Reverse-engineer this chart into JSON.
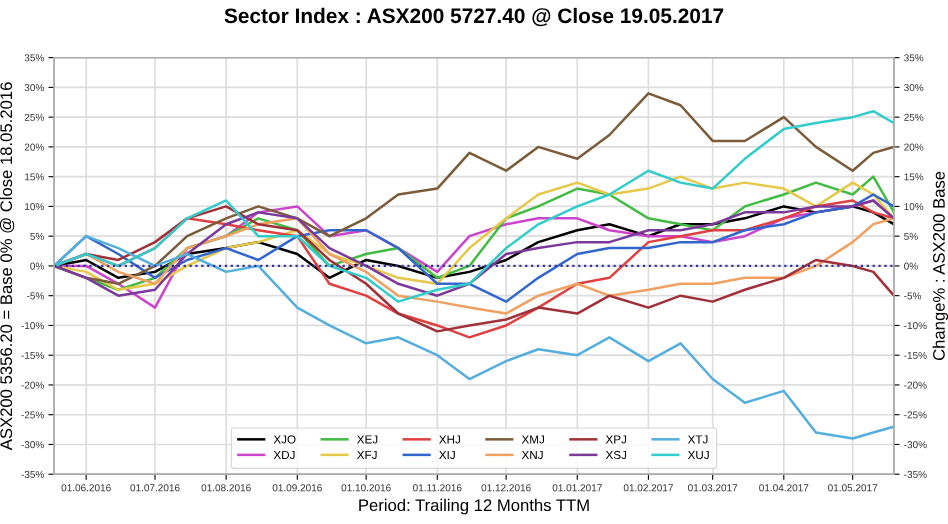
{
  "chart_data": {
    "type": "line",
    "title": "Sector Index : ASX200 5727.40 @ Close 19.05.2017",
    "xlabel": "Period: Trailing 12 Months TTM",
    "ylabel": "ASX200 5356.20 = Base 0% @ Close 18.05.2016",
    "y2label": "Change% : ASX200 Base",
    "x": [
      "2016-05-18",
      "2016-06-01",
      "2016-06-15",
      "2016-07-01",
      "2016-07-15",
      "2016-08-01",
      "2016-08-15",
      "2016-09-01",
      "2016-09-15",
      "2016-10-01",
      "2016-10-15",
      "2016-11-01",
      "2016-11-15",
      "2016-12-01",
      "2016-12-15",
      "2017-01-01",
      "2017-01-15",
      "2017-02-01",
      "2017-02-15",
      "2017-03-01",
      "2017-03-15",
      "2017-04-01",
      "2017-04-15",
      "2017-05-01",
      "2017-05-10",
      "2017-05-19"
    ],
    "series": [
      {
        "name": "XJO",
        "color": "#000000",
        "values": [
          0,
          1,
          -2,
          -1,
          2,
          3,
          4,
          2,
          -2,
          1,
          0,
          -2,
          -1,
          1,
          4,
          6,
          7,
          5,
          7,
          7,
          8,
          10,
          9,
          10,
          9,
          7
        ]
      },
      {
        "name": "XDJ",
        "color": "#cc44cc",
        "values": [
          0,
          0,
          -3,
          -7,
          3,
          5,
          9,
          10,
          5,
          6,
          3,
          -1,
          5,
          7,
          8,
          8,
          6,
          5,
          5,
          4,
          5,
          8,
          9,
          10,
          11,
          8
        ]
      },
      {
        "name": "XEJ",
        "color": "#44bb44",
        "values": [
          0,
          -2,
          -4,
          -2,
          3,
          5,
          8,
          6,
          0,
          2,
          3,
          -2,
          0,
          8,
          10,
          13,
          12,
          8,
          7,
          6,
          10,
          12,
          14,
          12,
          15,
          9
        ]
      },
      {
        "name": "XFJ",
        "color": "#e6c84a",
        "values": [
          0,
          -1,
          -4,
          -3,
          0,
          3,
          4,
          6,
          2,
          0,
          -2,
          -3,
          3,
          8,
          12,
          14,
          12,
          13,
          15,
          13,
          14,
          13,
          10,
          14,
          12,
          8
        ]
      },
      {
        "name": "XHJ",
        "color": "#e04040",
        "values": [
          0,
          2,
          0,
          3,
          8,
          7,
          6,
          5,
          -3,
          -5,
          -8,
          -10,
          -12,
          -10,
          -7,
          -3,
          -2,
          4,
          5,
          6,
          6,
          8,
          10,
          11,
          9,
          8
        ]
      },
      {
        "name": "XIJ",
        "color": "#3366cc",
        "values": [
          0,
          5,
          2,
          -2,
          1,
          3,
          1,
          5,
          6,
          6,
          3,
          -3,
          -3,
          -6,
          -2,
          2,
          3,
          3,
          4,
          4,
          6,
          7,
          9,
          10,
          12,
          10
        ]
      },
      {
        "name": "XMJ",
        "color": "#7a5c3a",
        "values": [
          0,
          -2,
          -3,
          0,
          5,
          8,
          10,
          8,
          5,
          8,
          12,
          13,
          19,
          16,
          20,
          18,
          22,
          29,
          27,
          21,
          21,
          25,
          20,
          16,
          19,
          20
        ]
      },
      {
        "name": "XNJ",
        "color": "#f0a060",
        "values": [
          0,
          2,
          -1,
          -3,
          3,
          5,
          7,
          8,
          2,
          -1,
          -5,
          -6,
          -7,
          -8,
          -5,
          -3,
          -5,
          -4,
          -3,
          -3,
          -2,
          -2,
          0,
          4,
          7,
          8
        ]
      },
      {
        "name": "XPJ",
        "color": "#a0303a",
        "values": [
          0,
          2,
          1,
          4,
          8,
          10,
          7,
          6,
          1,
          -3,
          -8,
          -11,
          -10,
          -9,
          -7,
          -8,
          -5,
          -7,
          -5,
          -6,
          -4,
          -2,
          1,
          0,
          -1,
          -5
        ]
      },
      {
        "name": "XSJ",
        "color": "#7b3a9a",
        "values": [
          0,
          -2,
          -5,
          -4,
          2,
          7,
          9,
          8,
          3,
          0,
          -3,
          -5,
          -3,
          2,
          3,
          4,
          4,
          6,
          6,
          7,
          9,
          9,
          10,
          10,
          11,
          8
        ]
      },
      {
        "name": "XTJ",
        "color": "#55aedb",
        "values": [
          0,
          5,
          3,
          0,
          2,
          -1,
          0,
          -7,
          -10,
          -13,
          -12,
          -15,
          -19,
          -16,
          -14,
          -15,
          -12,
          -16,
          -13,
          -19,
          -23,
          -21,
          -28,
          -29,
          -28,
          -27
        ]
      },
      {
        "name": "XUJ",
        "color": "#33cccc",
        "values": [
          0,
          2,
          0,
          3,
          8,
          11,
          5,
          5,
          0,
          -2,
          -6,
          -4,
          -3,
          3,
          7,
          10,
          12,
          16,
          14,
          13,
          18,
          23,
          24,
          25,
          26,
          24
        ]
      }
    ],
    "xlim": [
      "2016-05-18",
      "2017-05-19"
    ],
    "xticks": [
      {
        "value": "2016-06-01",
        "label": "01.06.2016"
      },
      {
        "value": "2016-07-01",
        "label": "01.07.2016"
      },
      {
        "value": "2016-08-01",
        "label": "01.08.2016"
      },
      {
        "value": "2016-09-01",
        "label": "01.09.2016"
      },
      {
        "value": "2016-10-01",
        "label": "01.10.2016"
      },
      {
        "value": "2016-11-01",
        "label": "01.11.2016"
      },
      {
        "value": "2016-12-01",
        "label": "01.12.2016"
      },
      {
        "value": "2017-01-01",
        "label": "01.01.2017"
      },
      {
        "value": "2017-02-01",
        "label": "01.02.2017"
      },
      {
        "value": "2017-03-01",
        "label": "01.03.2017"
      },
      {
        "value": "2017-04-01",
        "label": "01.04.2017"
      },
      {
        "value": "2017-05-01",
        "label": "01.05.2017"
      }
    ],
    "ylim": [
      -35,
      35
    ],
    "yticks": [
      {
        "value": -35,
        "label": "-35%"
      },
      {
        "value": -30,
        "label": "-30%"
      },
      {
        "value": -25,
        "label": "-25%"
      },
      {
        "value": -20,
        "label": "-20%"
      },
      {
        "value": -15,
        "label": "-15%"
      },
      {
        "value": -10,
        "label": "-10%"
      },
      {
        "value": -5,
        "label": "-5%"
      },
      {
        "value": 0,
        "label": "0%"
      },
      {
        "value": 5,
        "label": "5%"
      },
      {
        "value": 10,
        "label": "10%"
      },
      {
        "value": 15,
        "label": "15%"
      },
      {
        "value": 20,
        "label": "20%"
      },
      {
        "value": 25,
        "label": "25%"
      },
      {
        "value": 30,
        "label": "30%"
      },
      {
        "value": 35,
        "label": "35%"
      }
    ],
    "y2lim": [
      -35,
      35
    ],
    "y2ticks": [
      {
        "value": -35,
        "label": "-35%"
      },
      {
        "value": -30,
        "label": "-30%"
      },
      {
        "value": -25,
        "label": "-25%"
      },
      {
        "value": -20,
        "label": "-20%"
      },
      {
        "value": -15,
        "label": "-15%"
      },
      {
        "value": -10,
        "label": "-10%"
      },
      {
        "value": -5,
        "label": "-5%"
      },
      {
        "value": 0,
        "label": "0%"
      },
      {
        "value": 5,
        "label": "5%"
      },
      {
        "value": 10,
        "label": "10%"
      },
      {
        "value": 15,
        "label": "15%"
      },
      {
        "value": 20,
        "label": "20%"
      },
      {
        "value": 25,
        "label": "25%"
      },
      {
        "value": 30,
        "label": "30%"
      },
      {
        "value": 35,
        "label": "35%"
      }
    ],
    "ref_lines": [
      {
        "axis": "y",
        "value": 0,
        "color": "#333399",
        "line_style": "dotted"
      }
    ],
    "grid": true,
    "legend": "bottom",
    "line_style": "solid",
    "marker": "none"
  }
}
